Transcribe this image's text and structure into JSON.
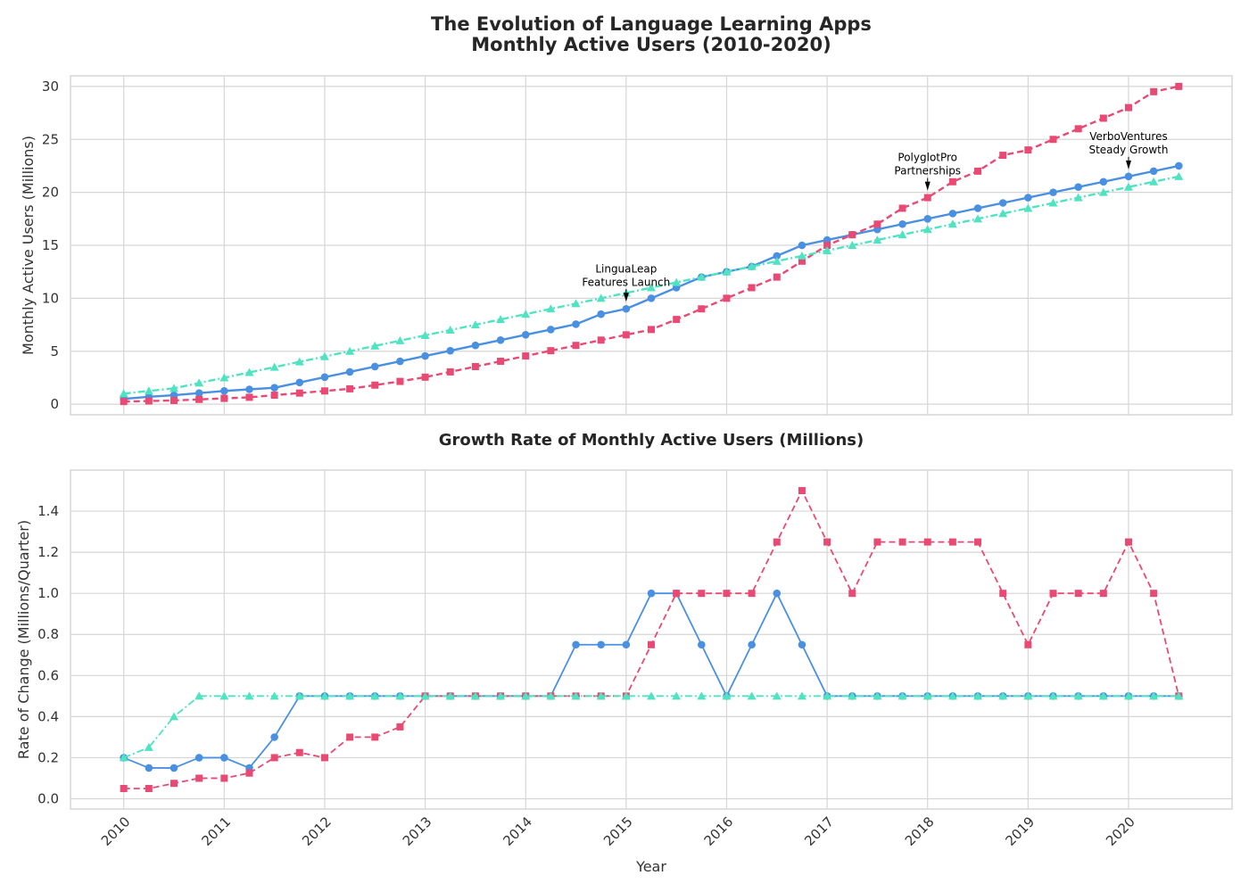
{
  "chart_data": [
    {
      "type": "line",
      "title_line1": "The Evolution of Language Learning Apps",
      "title_line2": "Monthly Active Users (2010-2020)",
      "ylabel": "Monthly Active Users (Millions)",
      "ylim": [
        -1,
        31
      ],
      "yticks": [
        0,
        5,
        10,
        15,
        20,
        25,
        30
      ],
      "grid": true,
      "series": [
        {
          "color": "#4a90e2",
          "marker": "circle",
          "linestyle": "solid",
          "values": [
            0.5,
            0.7,
            0.85,
            1.05,
            1.25,
            1.4,
            1.55,
            2.05,
            2.55,
            3.05,
            3.55,
            4.05,
            4.55,
            5.05,
            5.55,
            6.05,
            6.55,
            7.05,
            7.55,
            8.5,
            9.0,
            10.0,
            11.0,
            12.0,
            12.5,
            13.0,
            14.0,
            15.0,
            15.5,
            16.0,
            16.5,
            17.0,
            17.5,
            18.0,
            18.5,
            19.0,
            19.5,
            20.0,
            20.5,
            21.0,
            21.5,
            22.0,
            22.5
          ]
        },
        {
          "color": "#e84a73",
          "marker": "square",
          "linestyle": "dashed",
          "values": [
            0.25,
            0.3,
            0.35,
            0.45,
            0.55,
            0.65,
            0.85,
            1.05,
            1.25,
            1.45,
            1.8,
            2.15,
            2.55,
            3.05,
            3.55,
            4.05,
            4.55,
            5.05,
            5.55,
            6.05,
            6.55,
            7.05,
            8.0,
            9.0,
            10.0,
            11.0,
            12.0,
            13.5,
            15.0,
            16.0,
            17.0,
            18.5,
            19.5,
            21.0,
            22.0,
            23.5,
            24.0,
            25.0,
            26.0,
            27.0,
            28.0,
            29.5,
            30.0
          ]
        },
        {
          "color": "#50e3c2",
          "marker": "triangle",
          "linestyle": "dashdot",
          "values": [
            1.0,
            1.25,
            1.5,
            2.0,
            2.5,
            3.0,
            3.5,
            4.0,
            4.5,
            5.0,
            5.5,
            6.0,
            6.5,
            7.0,
            7.5,
            8.0,
            8.5,
            9.0,
            9.5,
            10.0,
            10.5,
            11.0,
            11.5,
            12.0,
            12.5,
            13.0,
            13.5,
            14.0,
            14.5,
            15.0,
            15.5,
            16.0,
            16.5,
            17.0,
            17.5,
            18.0,
            18.5,
            19.0,
            19.5,
            20.0,
            20.5,
            21.0,
            21.5
          ]
        }
      ],
      "annotations": [
        {
          "lines": [
            "LinguaLeap",
            "Features Launch"
          ],
          "x": 2015.0,
          "y": 9.0
        },
        {
          "lines": [
            "PolyglotPro",
            "Partnerships"
          ],
          "x": 2018.0,
          "y": 19.5
        },
        {
          "lines": [
            "VerboVentures",
            "Steady Growth"
          ],
          "x": 2020.0,
          "y": 21.5
        }
      ]
    },
    {
      "type": "line",
      "title": "Growth Rate of Monthly Active Users (Millions)",
      "xlabel": "Year",
      "ylabel": "Rate of Change (Millions/Quarter)",
      "ylim": [
        -0.05,
        1.6
      ],
      "yticks": [
        "0.0",
        "0.2",
        "0.4",
        "0.6",
        "0.8",
        "1.0",
        "1.2",
        "1.4"
      ],
      "grid": true,
      "series": [
        {
          "color": "#4a90e2",
          "marker": "circle",
          "linestyle": "solid",
          "values": [
            0.2,
            0.15,
            0.15,
            0.2,
            0.2,
            0.15,
            0.3,
            0.5,
            0.5,
            0.5,
            0.5,
            0.5,
            0.5,
            0.5,
            0.5,
            0.5,
            0.5,
            0.5,
            0.75,
            0.75,
            0.75,
            1.0,
            1.0,
            0.75,
            0.5,
            0.75,
            1.0,
            0.75,
            0.5,
            0.5,
            0.5,
            0.5,
            0.5,
            0.5,
            0.5,
            0.5,
            0.5,
            0.5,
            0.5,
            0.5,
            0.5,
            0.5,
            0.5
          ]
        },
        {
          "color": "#e84a73",
          "marker": "square",
          "linestyle": "dashed",
          "values": [
            0.05,
            0.05,
            0.075,
            0.1,
            0.1,
            0.125,
            0.2,
            0.225,
            0.2,
            0.3,
            0.3,
            0.35,
            0.5,
            0.5,
            0.5,
            0.5,
            0.5,
            0.5,
            0.5,
            0.5,
            0.5,
            0.75,
            1.0,
            1.0,
            1.0,
            1.0,
            1.25,
            1.5,
            1.25,
            1.0,
            1.25,
            1.25,
            1.25,
            1.25,
            1.25,
            1.0,
            0.75,
            1.0,
            1.0,
            1.0,
            1.25,
            1.0,
            0.5
          ]
        },
        {
          "color": "#50e3c2",
          "marker": "triangle",
          "linestyle": "dashdot",
          "values": [
            0.2,
            0.25,
            0.4,
            0.5,
            0.5,
            0.5,
            0.5,
            0.5,
            0.5,
            0.5,
            0.5,
            0.5,
            0.5,
            0.5,
            0.5,
            0.5,
            0.5,
            0.5,
            0.5,
            0.5,
            0.5,
            0.5,
            0.5,
            0.5,
            0.5,
            0.5,
            0.5,
            0.5,
            0.5,
            0.5,
            0.5,
            0.5,
            0.5,
            0.5,
            0.5,
            0.5,
            0.5,
            0.5,
            0.5,
            0.5,
            0.5,
            0.5,
            0.5
          ]
        }
      ]
    }
  ],
  "x": [
    2010.0,
    2010.25,
    2010.5,
    2010.75,
    2011.0,
    2011.25,
    2011.5,
    2011.75,
    2012.0,
    2012.25,
    2012.5,
    2012.75,
    2013.0,
    2013.25,
    2013.5,
    2013.75,
    2014.0,
    2014.25,
    2014.5,
    2014.75,
    2015.0,
    2015.25,
    2015.5,
    2015.75,
    2016.0,
    2016.25,
    2016.5,
    2016.75,
    2017.0,
    2017.25,
    2017.5,
    2017.75,
    2018.0,
    2018.25,
    2018.5,
    2018.75,
    2019.0,
    2019.25,
    2019.5,
    2019.75,
    2020.0,
    2020.25,
    2020.5
  ],
  "xlim": [
    2009.47,
    2021.03
  ],
  "xticks": [
    "2010",
    "2011",
    "2012",
    "2013",
    "2014",
    "2015",
    "2016",
    "2017",
    "2018",
    "2019",
    "2020"
  ]
}
